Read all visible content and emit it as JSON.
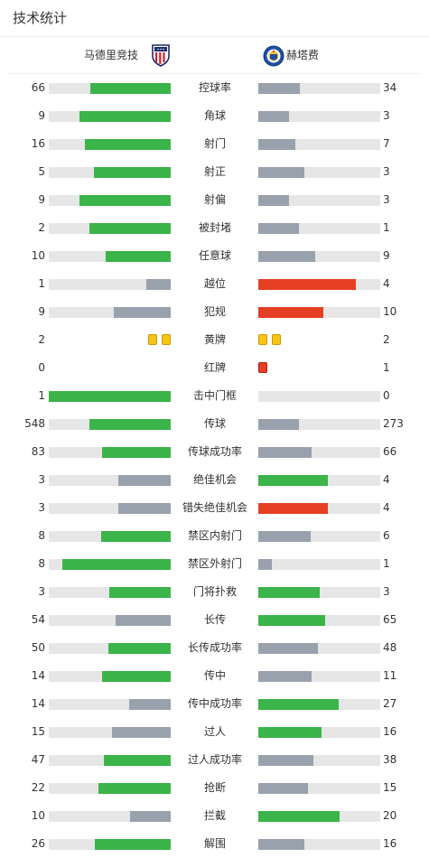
{
  "header": {
    "title": "技术统计"
  },
  "teams": {
    "home": "马德里竞技",
    "away": "赫塔费"
  },
  "colors": {
    "lead": "#3bb44a",
    "trail": "#99a1ad",
    "negative": "#e53f24",
    "yellow_card": "#f6c515",
    "red_card": "#e53f24",
    "track": "#e6e6e6"
  },
  "stats": [
    {
      "label": "控球率",
      "home": "66",
      "away": "34",
      "home_pct": 0.66,
      "away_pct": 0.34,
      "home_color": "green",
      "away_color": "gray"
    },
    {
      "label": "角球",
      "home": "9",
      "away": "3",
      "home_pct": 0.75,
      "away_pct": 0.25,
      "home_color": "green",
      "away_color": "gray"
    },
    {
      "label": "射门",
      "home": "16",
      "away": "7",
      "home_pct": 0.7,
      "away_pct": 0.3,
      "home_color": "green",
      "away_color": "gray"
    },
    {
      "label": "射正",
      "home": "5",
      "away": "3",
      "home_pct": 0.63,
      "away_pct": 0.38,
      "home_color": "green",
      "away_color": "gray"
    },
    {
      "label": "射偏",
      "home": "9",
      "away": "3",
      "home_pct": 0.75,
      "away_pct": 0.25,
      "home_color": "green",
      "away_color": "gray"
    },
    {
      "label": "被封堵",
      "home": "2",
      "away": "1",
      "home_pct": 0.67,
      "away_pct": 0.33,
      "home_color": "green",
      "away_color": "gray"
    },
    {
      "label": "任意球",
      "home": "10",
      "away": "9",
      "home_pct": 0.53,
      "away_pct": 0.47,
      "home_color": "green",
      "away_color": "gray"
    },
    {
      "label": "越位",
      "home": "1",
      "away": "4",
      "home_pct": 0.2,
      "away_pct": 0.8,
      "home_color": "gray",
      "away_color": "red"
    },
    {
      "label": "犯规",
      "home": "9",
      "away": "10",
      "home_pct": 0.47,
      "away_pct": 0.53,
      "home_color": "gray",
      "away_color": "red"
    },
    {
      "label": "黄牌",
      "home": "2",
      "away": "2",
      "cards": "yellow",
      "home_cards": 2,
      "away_cards": 2
    },
    {
      "label": "红牌",
      "home": "0",
      "away": "1",
      "cards": "red",
      "home_cards": 0,
      "away_cards": 1
    },
    {
      "label": "击中门框",
      "home": "1",
      "away": "0",
      "home_pct": 1.0,
      "away_pct": 0.0,
      "home_color": "green",
      "away_color": "gray"
    },
    {
      "label": "传球",
      "home": "548",
      "away": "273",
      "home_pct": 0.67,
      "away_pct": 0.33,
      "home_color": "green",
      "away_color": "gray"
    },
    {
      "label": "传球成功率",
      "home": "83",
      "away": "66",
      "home_pct": 0.56,
      "away_pct": 0.44,
      "home_color": "green",
      "away_color": "gray"
    },
    {
      "label": "绝佳机会",
      "home": "3",
      "away": "4",
      "home_pct": 0.43,
      "away_pct": 0.57,
      "home_color": "gray",
      "away_color": "green"
    },
    {
      "label": "错失绝佳机会",
      "home": "3",
      "away": "4",
      "home_pct": 0.43,
      "away_pct": 0.57,
      "home_color": "gray",
      "away_color": "red"
    },
    {
      "label": "禁区内射门",
      "home": "8",
      "away": "6",
      "home_pct": 0.57,
      "away_pct": 0.43,
      "home_color": "green",
      "away_color": "gray"
    },
    {
      "label": "禁区外射门",
      "home": "8",
      "away": "1",
      "home_pct": 0.89,
      "away_pct": 0.11,
      "home_color": "green",
      "away_color": "gray"
    },
    {
      "label": "门将扑救",
      "home": "3",
      "away": "3",
      "home_pct": 0.5,
      "away_pct": 0.5,
      "home_color": "green",
      "away_color": "green"
    },
    {
      "label": "长传",
      "home": "54",
      "away": "65",
      "home_pct": 0.45,
      "away_pct": 0.55,
      "home_color": "gray",
      "away_color": "green"
    },
    {
      "label": "长传成功率",
      "home": "50",
      "away": "48",
      "home_pct": 0.51,
      "away_pct": 0.49,
      "home_color": "green",
      "away_color": "gray"
    },
    {
      "label": "传中",
      "home": "14",
      "away": "11",
      "home_pct": 0.56,
      "away_pct": 0.44,
      "home_color": "green",
      "away_color": "gray"
    },
    {
      "label": "传中成功率",
      "home": "14",
      "away": "27",
      "home_pct": 0.34,
      "away_pct": 0.66,
      "home_color": "gray",
      "away_color": "green"
    },
    {
      "label": "过人",
      "home": "15",
      "away": "16",
      "home_pct": 0.48,
      "away_pct": 0.52,
      "home_color": "gray",
      "away_color": "green"
    },
    {
      "label": "过人成功率",
      "home": "47",
      "away": "38",
      "home_pct": 0.55,
      "away_pct": 0.45,
      "home_color": "green",
      "away_color": "gray"
    },
    {
      "label": "抢断",
      "home": "22",
      "away": "15",
      "home_pct": 0.59,
      "away_pct": 0.41,
      "home_color": "green",
      "away_color": "gray"
    },
    {
      "label": "拦截",
      "home": "10",
      "away": "20",
      "home_pct": 0.33,
      "away_pct": 0.67,
      "home_color": "gray",
      "away_color": "green"
    },
    {
      "label": "解围",
      "home": "26",
      "away": "16",
      "home_pct": 0.62,
      "away_pct": 0.38,
      "home_color": "green",
      "away_color": "gray"
    }
  ]
}
